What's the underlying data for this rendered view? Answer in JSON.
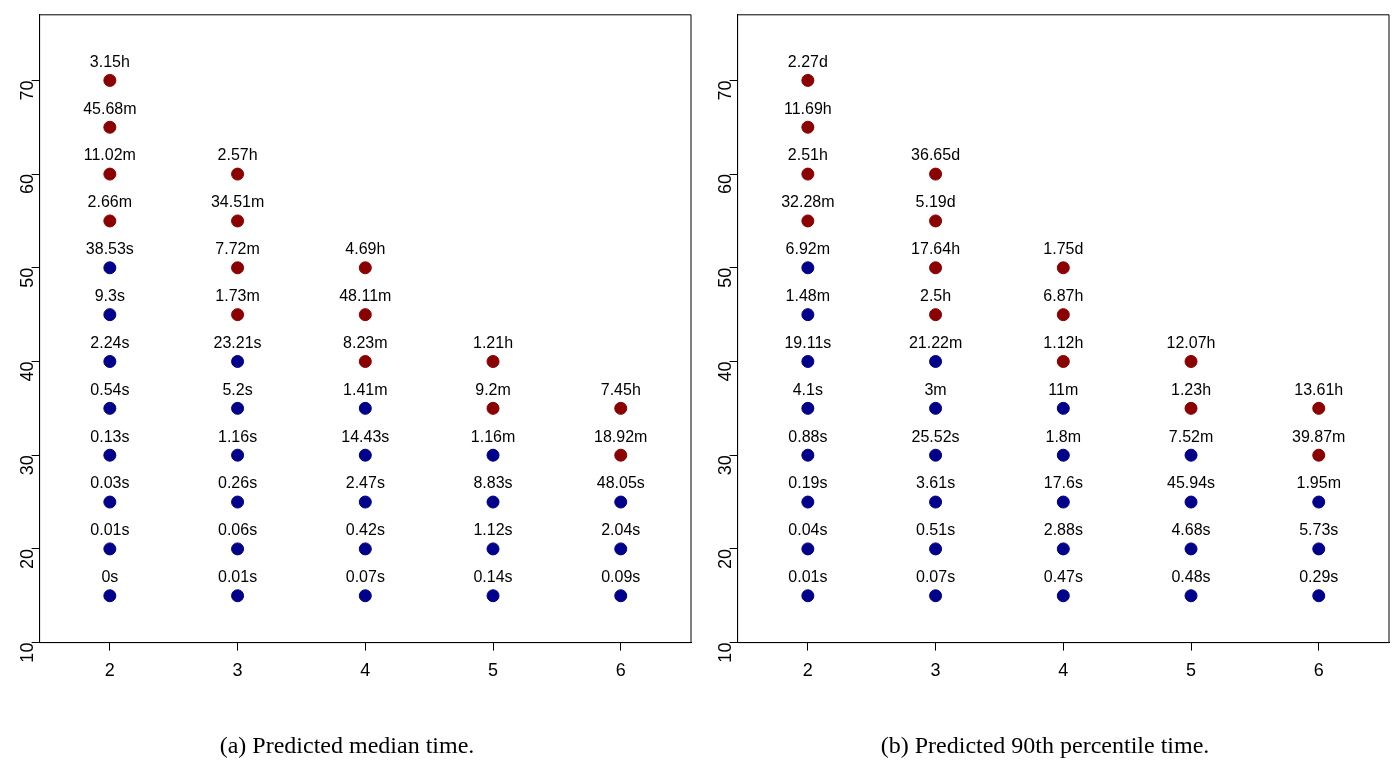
{
  "chart_data": [
    {
      "type": "scatter",
      "title": "(a) Predicted median time.",
      "xlim": [
        1.45,
        6.55
      ],
      "ylim": [
        10,
        77
      ],
      "xticks": [
        2,
        3,
        4,
        5,
        6
      ],
      "yticks": [
        10,
        20,
        30,
        40,
        50,
        60,
        70
      ],
      "marker": "circle",
      "grid": false,
      "series": [
        {
          "color": "#00008b",
          "x": [
            2,
            2,
            2,
            2,
            2,
            2,
            2,
            2,
            3,
            3,
            3,
            3,
            3,
            3,
            4,
            4,
            4,
            4,
            4,
            5,
            5,
            5,
            5,
            6,
            6,
            6
          ],
          "values": [
            15,
            20,
            25,
            30,
            35,
            40,
            45,
            50,
            15,
            20,
            25,
            30,
            35,
            40,
            15,
            20,
            25,
            30,
            35,
            15,
            20,
            25,
            30,
            15,
            20,
            25
          ]
        },
        {
          "color": "#8b0000",
          "x": [
            2,
            2,
            2,
            2,
            3,
            3,
            3,
            3,
            4,
            4,
            4,
            5,
            5,
            6,
            6
          ],
          "values": [
            55,
            60,
            65,
            70,
            45,
            50,
            55,
            60,
            40,
            45,
            50,
            35,
            40,
            30,
            35
          ]
        }
      ],
      "annotations": [
        {
          "text": "0s",
          "x": 2,
          "y": 15
        },
        {
          "text": "0.01s",
          "x": 2,
          "y": 20
        },
        {
          "text": "0.03s",
          "x": 2,
          "y": 25
        },
        {
          "text": "0.13s",
          "x": 2,
          "y": 30
        },
        {
          "text": "0.54s",
          "x": 2,
          "y": 35
        },
        {
          "text": "2.24s",
          "x": 2,
          "y": 40
        },
        {
          "text": "9.3s",
          "x": 2,
          "y": 45
        },
        {
          "text": "38.53s",
          "x": 2,
          "y": 50
        },
        {
          "text": "2.66m",
          "x": 2,
          "y": 55
        },
        {
          "text": "11.02m",
          "x": 2,
          "y": 60
        },
        {
          "text": "45.68m",
          "x": 2,
          "y": 65
        },
        {
          "text": "3.15h",
          "x": 2,
          "y": 70
        },
        {
          "text": "0.01s",
          "x": 3,
          "y": 15
        },
        {
          "text": "0.06s",
          "x": 3,
          "y": 20
        },
        {
          "text": "0.26s",
          "x": 3,
          "y": 25
        },
        {
          "text": "1.16s",
          "x": 3,
          "y": 30
        },
        {
          "text": "5.2s",
          "x": 3,
          "y": 35
        },
        {
          "text": "23.21s",
          "x": 3,
          "y": 40
        },
        {
          "text": "1.73m",
          "x": 3,
          "y": 45
        },
        {
          "text": "7.72m",
          "x": 3,
          "y": 50
        },
        {
          "text": "34.51m",
          "x": 3,
          "y": 55
        },
        {
          "text": "2.57h",
          "x": 3,
          "y": 60
        },
        {
          "text": "0.07s",
          "x": 4,
          "y": 15
        },
        {
          "text": "0.42s",
          "x": 4,
          "y": 20
        },
        {
          "text": "2.47s",
          "x": 4,
          "y": 25
        },
        {
          "text": "14.43s",
          "x": 4,
          "y": 30
        },
        {
          "text": "1.41m",
          "x": 4,
          "y": 35
        },
        {
          "text": "8.23m",
          "x": 4,
          "y": 40
        },
        {
          "text": "48.11m",
          "x": 4,
          "y": 45
        },
        {
          "text": "4.69h",
          "x": 4,
          "y": 50
        },
        {
          "text": "0.14s",
          "x": 5,
          "y": 15
        },
        {
          "text": "1.12s",
          "x": 5,
          "y": 20
        },
        {
          "text": "8.83s",
          "x": 5,
          "y": 25
        },
        {
          "text": "1.16m",
          "x": 5,
          "y": 30
        },
        {
          "text": "9.2m",
          "x": 5,
          "y": 35
        },
        {
          "text": "1.21h",
          "x": 5,
          "y": 40
        },
        {
          "text": "0.09s",
          "x": 6,
          "y": 15
        },
        {
          "text": "2.04s",
          "x": 6,
          "y": 20
        },
        {
          "text": "48.05s",
          "x": 6,
          "y": 25
        },
        {
          "text": "18.92m",
          "x": 6,
          "y": 30
        },
        {
          "text": "7.45h",
          "x": 6,
          "y": 35
        }
      ]
    },
    {
      "type": "scatter",
      "title": "(b) Predicted 90th percentile time.",
      "xlim": [
        1.45,
        6.55
      ],
      "ylim": [
        10,
        77
      ],
      "xticks": [
        2,
        3,
        4,
        5,
        6
      ],
      "yticks": [
        10,
        20,
        30,
        40,
        50,
        60,
        70
      ],
      "marker": "circle",
      "grid": false,
      "series": [
        {
          "color": "#00008b",
          "x": [
            2,
            2,
            2,
            2,
            2,
            2,
            2,
            2,
            3,
            3,
            3,
            3,
            3,
            3,
            4,
            4,
            4,
            4,
            4,
            5,
            5,
            5,
            5,
            6,
            6,
            6
          ],
          "values": [
            15,
            20,
            25,
            30,
            35,
            40,
            45,
            50,
            15,
            20,
            25,
            30,
            35,
            40,
            15,
            20,
            25,
            30,
            35,
            15,
            20,
            25,
            30,
            15,
            20,
            25
          ]
        },
        {
          "color": "#8b0000",
          "x": [
            2,
            2,
            2,
            2,
            3,
            3,
            3,
            3,
            4,
            4,
            4,
            5,
            5,
            6,
            6
          ],
          "values": [
            55,
            60,
            65,
            70,
            45,
            50,
            55,
            60,
            40,
            45,
            50,
            35,
            40,
            30,
            35
          ]
        }
      ],
      "annotations": [
        {
          "text": "0.01s",
          "x": 2,
          "y": 15
        },
        {
          "text": "0.04s",
          "x": 2,
          "y": 20
        },
        {
          "text": "0.19s",
          "x": 2,
          "y": 25
        },
        {
          "text": "0.88s",
          "x": 2,
          "y": 30
        },
        {
          "text": "4.1s",
          "x": 2,
          "y": 35
        },
        {
          "text": "19.11s",
          "x": 2,
          "y": 40
        },
        {
          "text": "1.48m",
          "x": 2,
          "y": 45
        },
        {
          "text": "6.92m",
          "x": 2,
          "y": 50
        },
        {
          "text": "32.28m",
          "x": 2,
          "y": 55
        },
        {
          "text": "2.51h",
          "x": 2,
          "y": 60
        },
        {
          "text": "11.69h",
          "x": 2,
          "y": 65
        },
        {
          "text": "2.27d",
          "x": 2,
          "y": 70
        },
        {
          "text": "0.07s",
          "x": 3,
          "y": 15
        },
        {
          "text": "0.51s",
          "x": 3,
          "y": 20
        },
        {
          "text": "3.61s",
          "x": 3,
          "y": 25
        },
        {
          "text": "25.52s",
          "x": 3,
          "y": 30
        },
        {
          "text": "3m",
          "x": 3,
          "y": 35
        },
        {
          "text": "21.22m",
          "x": 3,
          "y": 40
        },
        {
          "text": "2.5h",
          "x": 3,
          "y": 45
        },
        {
          "text": "17.64h",
          "x": 3,
          "y": 50
        },
        {
          "text": "5.19d",
          "x": 3,
          "y": 55
        },
        {
          "text": "36.65d",
          "x": 3,
          "y": 60
        },
        {
          "text": "0.47s",
          "x": 4,
          "y": 15
        },
        {
          "text": "2.88s",
          "x": 4,
          "y": 20
        },
        {
          "text": "17.6s",
          "x": 4,
          "y": 25
        },
        {
          "text": "1.8m",
          "x": 4,
          "y": 30
        },
        {
          "text": "11m",
          "x": 4,
          "y": 35
        },
        {
          "text": "1.12h",
          "x": 4,
          "y": 40
        },
        {
          "text": "6.87h",
          "x": 4,
          "y": 45
        },
        {
          "text": "1.75d",
          "x": 4,
          "y": 50
        },
        {
          "text": "0.48s",
          "x": 5,
          "y": 15
        },
        {
          "text": "4.68s",
          "x": 5,
          "y": 20
        },
        {
          "text": "45.94s",
          "x": 5,
          "y": 25
        },
        {
          "text": "7.52m",
          "x": 5,
          "y": 30
        },
        {
          "text": "1.23h",
          "x": 5,
          "y": 35
        },
        {
          "text": "12.07h",
          "x": 5,
          "y": 40
        },
        {
          "text": "0.29s",
          "x": 6,
          "y": 15
        },
        {
          "text": "5.73s",
          "x": 6,
          "y": 20
        },
        {
          "text": "1.95m",
          "x": 6,
          "y": 25
        },
        {
          "text": "39.87m",
          "x": 6,
          "y": 30
        },
        {
          "text": "13.61h",
          "x": 6,
          "y": 35
        }
      ]
    }
  ]
}
